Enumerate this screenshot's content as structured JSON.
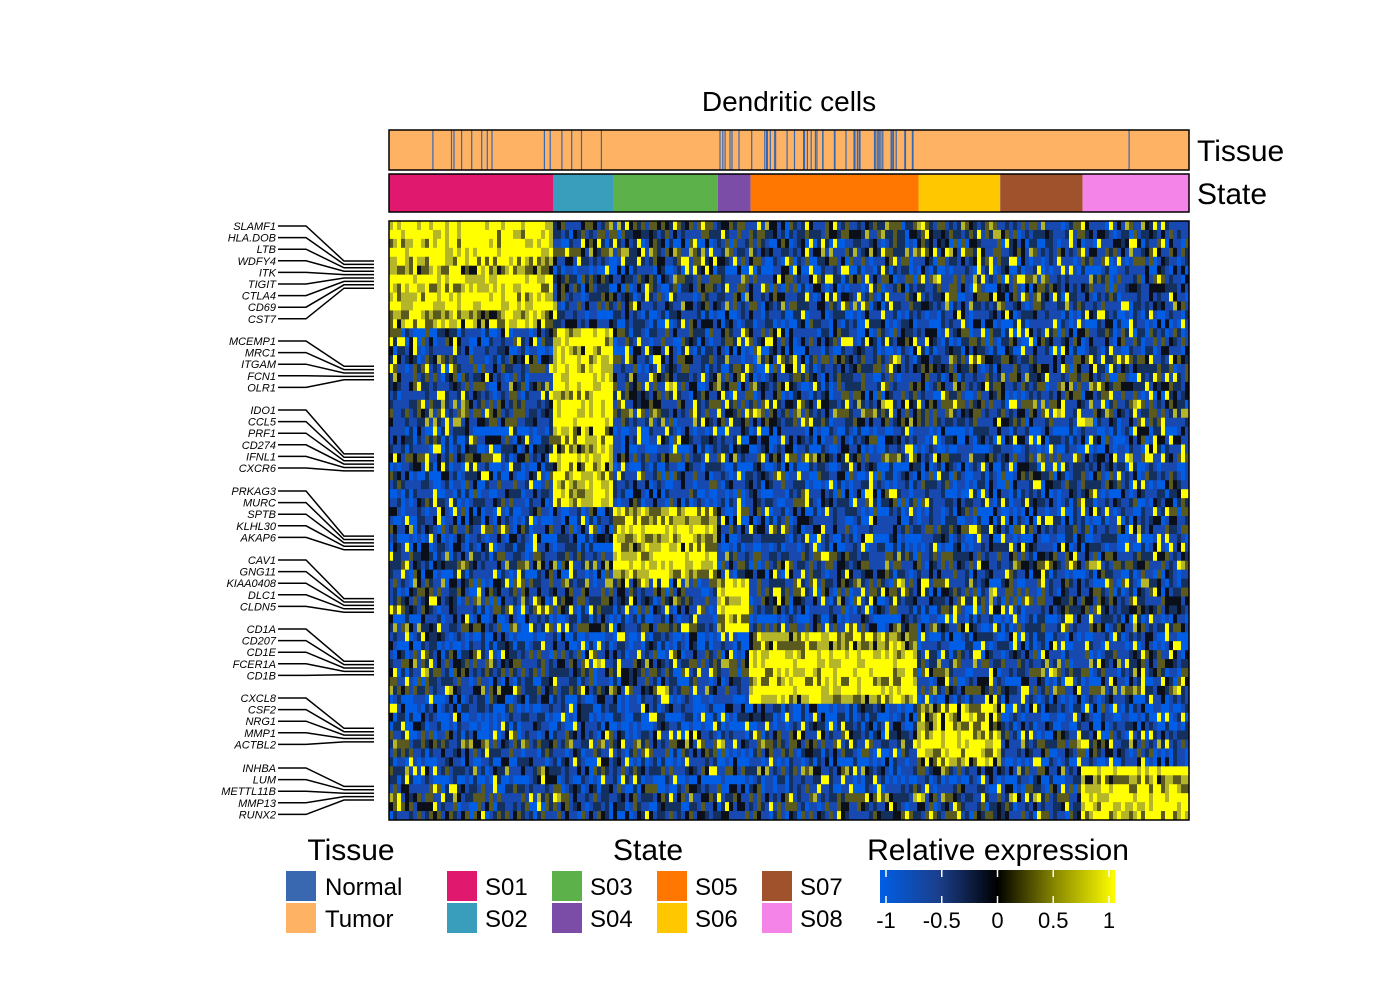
{
  "chart_data": {
    "type": "heatmap",
    "title": "Dendritic cells",
    "annotation_labels": {
      "tissue": "Tissue",
      "state": "State"
    },
    "states": [
      {
        "name": "S01",
        "color": "#E0196E",
        "fraction": 0.205
      },
      {
        "name": "S02",
        "color": "#399EBC",
        "fraction": 0.075
      },
      {
        "name": "S03",
        "color": "#5CB14B",
        "fraction": 0.131
      },
      {
        "name": "S04",
        "color": "#7B4DA6",
        "fraction": 0.041
      },
      {
        "name": "S05",
        "color": "#FF7700",
        "fraction": 0.21
      },
      {
        "name": "S06",
        "color": "#FFC700",
        "fraction": 0.102
      },
      {
        "name": "S07",
        "color": "#A0522D",
        "fraction": 0.103
      },
      {
        "name": "S08",
        "color": "#F484E8",
        "fraction": 0.133
      }
    ],
    "tissues": [
      {
        "name": "Normal",
        "color": "#3A68B0"
      },
      {
        "name": "Tumor",
        "color": "#FDB264"
      }
    ],
    "normal_cell_share_by_state": [
      0.1,
      0.12,
      0.0,
      0.3,
      0.38,
      0.0,
      0.0,
      0.01
    ],
    "gene_groups": [
      {
        "state": "S01",
        "genes": [
          "SLAMF1",
          "HLA.DOB",
          "LTB",
          "WDFY4",
          "ITK",
          "TIGIT",
          "CTLA4",
          "CD69",
          "CST7"
        ]
      },
      {
        "state": "S02",
        "genes": [
          "MCEMP1",
          "MRC1",
          "ITGAM",
          "FCN1",
          "OLR1"
        ]
      },
      {
        "state": "S02",
        "genes": [
          "IDO1",
          "CCL5",
          "PRF1",
          "CD274",
          "IFNL1",
          "CXCR6"
        ]
      },
      {
        "state": "S03",
        "genes": [
          "PRKAG3",
          "MURC",
          "SPTB",
          "KLHL30",
          "AKAP6"
        ]
      },
      {
        "state": "S04",
        "genes": [
          "CAV1",
          "GNG11",
          "KIAA0408",
          "DLC1",
          "CLDN5"
        ]
      },
      {
        "state": "S05",
        "genes": [
          "CD1A",
          "CD207",
          "CD1E",
          "FCER1A",
          "CD1B"
        ]
      },
      {
        "state": "S06",
        "genes": [
          "CXCL8",
          "CSF2",
          "NRG1",
          "MMP1",
          "ACTBL2"
        ]
      },
      {
        "state": "S08",
        "genes": [
          "INHBA",
          "LUM",
          "METTL11B",
          "MMP13",
          "RUNX2"
        ]
      }
    ],
    "legends": {
      "tissue_title": "Tissue",
      "state_title": "State",
      "expression_title": "Relative expression"
    },
    "color_scale": {
      "title": "Relative expression",
      "range": [
        -1,
        1
      ],
      "ticks": [
        "-1",
        "-0.5",
        "0",
        "0.5",
        "1"
      ],
      "colors": [
        "#005EE6",
        "#1B3F8B",
        "#000000",
        "#8B8B00",
        "#FFFF00"
      ]
    }
  }
}
